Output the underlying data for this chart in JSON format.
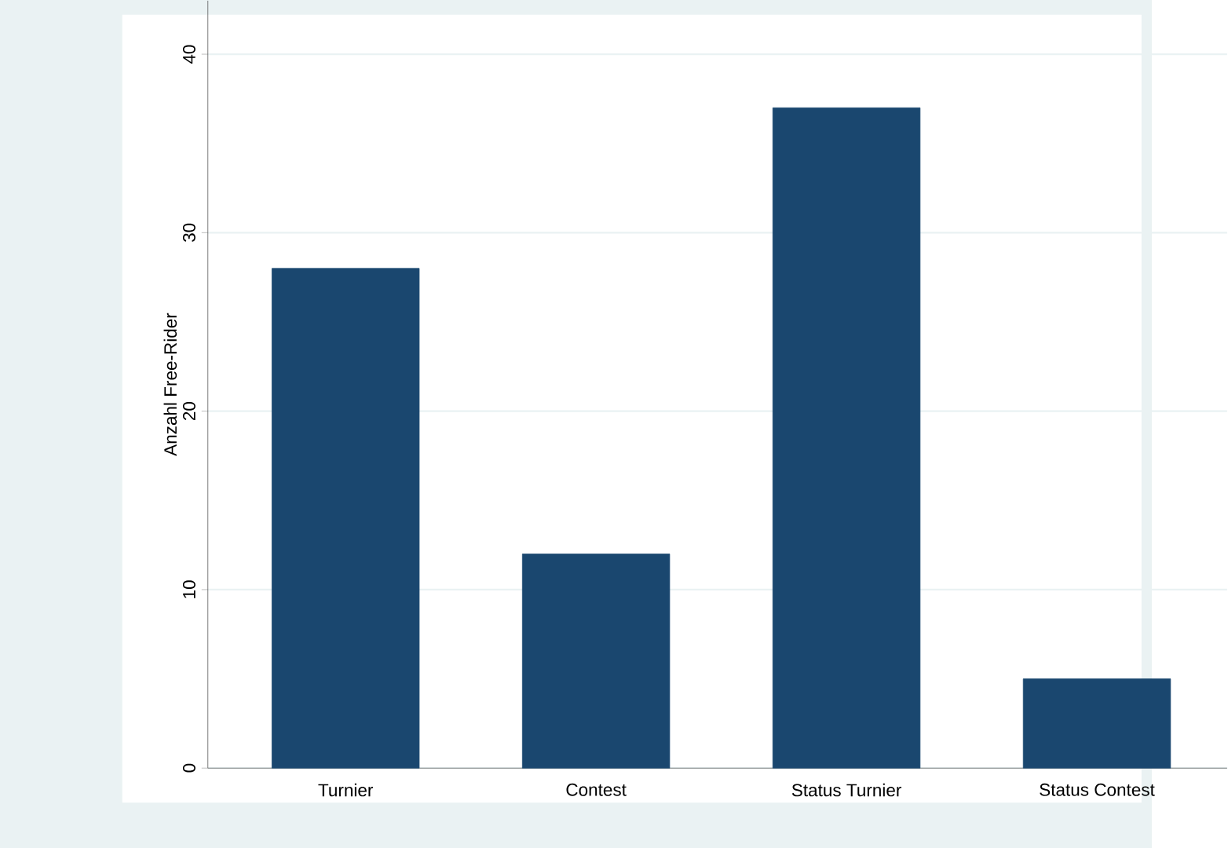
{
  "chart_data": {
    "type": "bar",
    "ylabel": "Anzahl Free-Rider",
    "categories": [
      "Turnier",
      "Contest",
      "Status Turnier",
      "Status Contest"
    ],
    "values": [
      28,
      12,
      37,
      5
    ],
    "color": "#1a476f",
    "ylim": [
      0,
      43
    ],
    "yticks": [
      0,
      10,
      20,
      30,
      40
    ],
    "grid": "y"
  }
}
